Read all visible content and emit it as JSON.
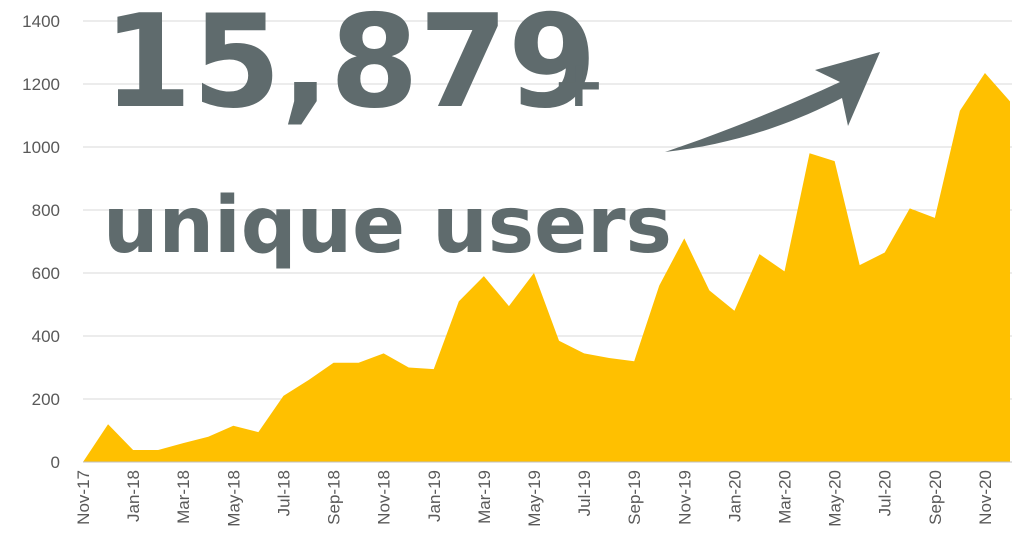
{
  "chart_data": {
    "type": "area",
    "headline": "15,879",
    "headline_suffix": "+",
    "subtitle": "unique users",
    "color": "#ffc000",
    "grid": true,
    "categories": [
      "Nov-17",
      null,
      "Jan-18",
      null,
      "Mar-18",
      null,
      "May-18",
      null,
      "Jul-18",
      null,
      "Sep-18",
      null,
      "Nov-18",
      null,
      "Jan-19",
      null,
      "Mar-19",
      null,
      "May-19",
      null,
      "Jul-19",
      null,
      "Sep-19",
      null,
      "Nov-19",
      null,
      "Jan-20",
      null,
      "Mar-20",
      null,
      "May-20",
      null,
      "Jul-20",
      null,
      "Sep-20",
      null,
      "Nov-20",
      null
    ],
    "values": [
      0,
      120,
      38,
      38,
      60,
      80,
      115,
      95,
      210,
      260,
      315,
      315,
      345,
      300,
      295,
      510,
      590,
      495,
      600,
      385,
      345,
      330,
      320,
      560,
      710,
      545,
      480,
      660,
      605,
      980,
      955,
      625,
      665,
      805,
      775,
      1115,
      1235,
      1145
    ],
    "ylim": [
      0,
      1400
    ],
    "yticks": [
      0,
      200,
      400,
      600,
      800,
      1000,
      1200,
      1400
    ]
  }
}
